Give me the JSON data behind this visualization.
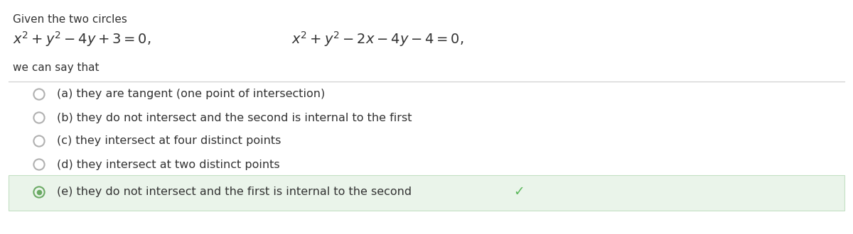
{
  "background_color": "#ffffff",
  "header_text_line1": "Given the two circles",
  "header_eq1": "$x^2 + y^2 - 4y + 3 = 0,$",
  "header_eq2": "$x^2 + y^2 - 2x - 4y - 4 = 0,$",
  "header_text_line2": "we can say that",
  "options": [
    {
      "label": "(a) they are tangent (one point of intersection)",
      "selected": false,
      "correct": false
    },
    {
      "label": "(b) they do not intersect and the second is internal to the first",
      "selected": false,
      "correct": false
    },
    {
      "label": "(c) they intersect at four distinct points",
      "selected": false,
      "correct": false
    },
    {
      "label": "(d) they intersect at two distinct points",
      "selected": false,
      "correct": false
    },
    {
      "label": "(e) they do not intersect and the first is internal to the second",
      "selected": true,
      "correct": true
    }
  ],
  "circle_color_unselected": "#b0b0b0",
  "circle_color_selected": "#6aaa64",
  "highlight_color": "#eaf4ea",
  "highlight_border_color": "#c5e0c5",
  "check_color": "#5cb85c",
  "text_color": "#333333",
  "font_size_header_small": 11,
  "font_size_eq": 14,
  "font_size_option": 11.5
}
